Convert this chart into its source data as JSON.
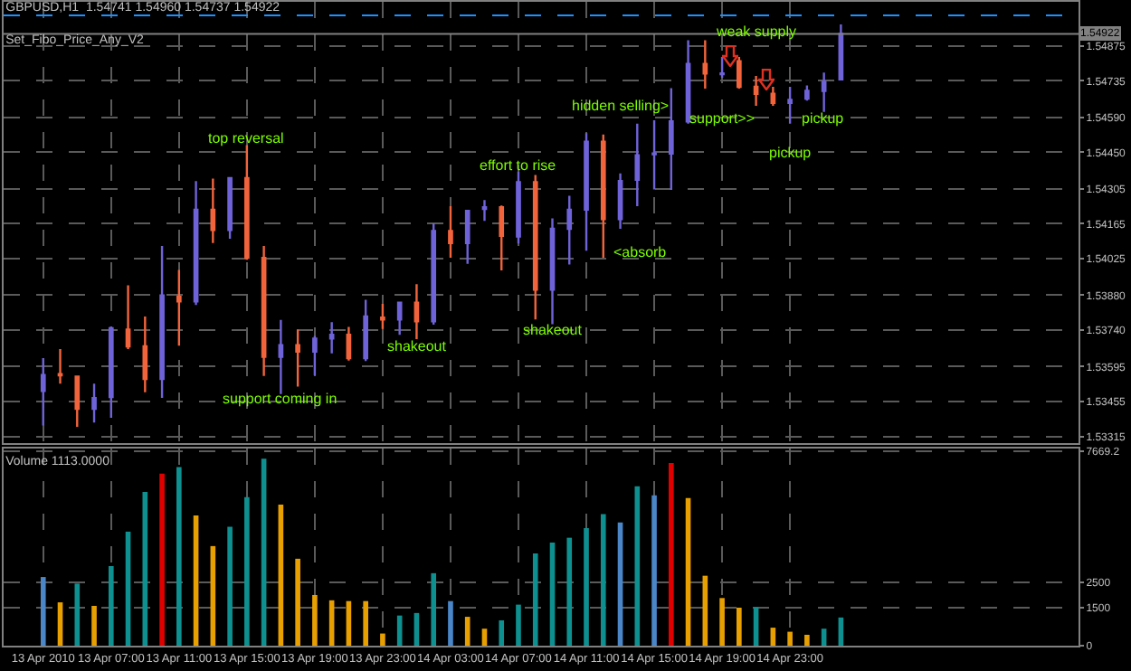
{
  "chart_data": [
    {
      "type": "candlestick",
      "title": "GBPUSD,H1  1.54741 1.54960 1.54737 1.54922",
      "subtitle": "Set_Fibo_Price_Any_V2",
      "x": [
        "2010-04-13T03:00",
        "2010-04-13T04:00",
        "2010-04-13T05:00",
        "2010-04-13T06:00",
        "2010-04-13T07:00",
        "2010-04-13T08:00",
        "2010-04-13T09:00",
        "2010-04-13T10:00",
        "2010-04-13T11:00",
        "2010-04-13T12:00",
        "2010-04-13T13:00",
        "2010-04-13T14:00",
        "2010-04-13T15:00",
        "2010-04-13T16:00",
        "2010-04-13T17:00",
        "2010-04-13T18:00",
        "2010-04-13T19:00",
        "2010-04-13T20:00",
        "2010-04-13T21:00",
        "2010-04-13T22:00",
        "2010-04-13T23:00",
        "2010-04-14T00:00",
        "2010-04-14T01:00",
        "2010-04-14T02:00",
        "2010-04-14T03:00",
        "2010-04-14T04:00",
        "2010-04-14T05:00",
        "2010-04-14T06:00",
        "2010-04-14T07:00",
        "2010-04-14T08:00",
        "2010-04-14T09:00",
        "2010-04-14T10:00",
        "2010-04-14T11:00",
        "2010-04-14T12:00",
        "2010-04-14T13:00",
        "2010-04-14T14:00",
        "2010-04-14T15:00",
        "2010-04-14T16:00",
        "2010-04-14T17:00",
        "2010-04-14T18:00",
        "2010-04-14T19:00",
        "2010-04-14T20:00",
        "2010-04-14T21:00",
        "2010-04-14T22:00",
        "2010-04-14T23:00",
        "2010-04-15T00:00",
        "2010-04-15T01:00",
        "2010-04-15T02:00"
      ],
      "ohlc": [
        [
          1.53498,
          1.53629,
          1.5336,
          1.53562
        ],
        [
          1.53565,
          1.53665,
          1.53527,
          1.5356
        ],
        [
          1.53555,
          1.53558,
          1.53355,
          1.53427
        ],
        [
          1.53427,
          1.53527,
          1.53372,
          1.5347
        ],
        [
          1.53474,
          1.53755,
          1.53391,
          1.53748
        ],
        [
          1.53743,
          1.53919,
          1.53665,
          1.53676
        ],
        [
          1.53676,
          1.53795,
          1.53493,
          1.53546
        ],
        [
          1.53546,
          1.54076,
          1.5347,
          1.53879
        ],
        [
          1.53874,
          1.53981,
          1.53679,
          1.53855
        ],
        [
          1.53855,
          1.54335,
          1.53841,
          1.54221
        ],
        [
          1.54221,
          1.54345,
          1.54088,
          1.5414
        ],
        [
          1.5414,
          1.54347,
          1.54105,
          1.54347
        ],
        [
          1.54347,
          1.54478,
          1.54021,
          1.54029
        ],
        [
          1.54029,
          1.54076,
          1.53558,
          1.53634
        ],
        [
          1.53634,
          1.53781,
          1.53486,
          1.53681
        ],
        [
          1.53681,
          1.53743,
          1.53515,
          1.53655
        ],
        [
          1.53655,
          1.53717,
          1.5356,
          1.53707
        ],
        [
          1.53707,
          1.53772,
          1.53648,
          1.53722
        ],
        [
          1.53722,
          1.53753,
          1.53619,
          1.53629
        ],
        [
          1.53629,
          1.53862,
          1.53617,
          1.53795
        ],
        [
          1.53791,
          1.53845,
          1.53745,
          1.53783
        ],
        [
          1.53783,
          1.53852,
          1.53722,
          1.5385
        ],
        [
          1.5385,
          1.53924,
          1.53705,
          1.53776
        ],
        [
          1.53776,
          1.54166,
          1.53762,
          1.54136
        ],
        [
          1.54136,
          1.54235,
          1.54029,
          1.54088
        ],
        [
          1.54088,
          1.54219,
          1.54005,
          1.54216
        ],
        [
          1.54224,
          1.54259,
          1.54176,
          1.54231
        ],
        [
          1.54231,
          1.54238,
          1.53979,
          1.54117
        ],
        [
          1.54114,
          1.54373,
          1.54086,
          1.54331
        ],
        [
          1.54331,
          1.54359,
          1.53783,
          1.53902
        ],
        [
          1.53902,
          1.54186,
          1.53764,
          1.54145
        ],
        [
          1.54145,
          1.54276,
          1.54002,
          1.54221
        ],
        [
          1.54221,
          1.54526,
          1.54057,
          1.54492
        ],
        [
          1.54492,
          1.54521,
          1.54029,
          1.54183
        ],
        [
          1.54183,
          1.54366,
          1.54145,
          1.54335
        ],
        [
          1.5434,
          1.54564,
          1.54235,
          1.54438
        ],
        [
          1.54442,
          1.54578,
          1.54302,
          1.54445
        ],
        [
          1.54445,
          1.54706,
          1.543,
          1.54573
        ],
        [
          1.54573,
          1.54897,
          1.54564,
          1.54802
        ],
        [
          1.54802,
          1.54897,
          1.54704,
          1.54764
        ],
        [
          1.54761,
          1.5483,
          1.54747,
          1.54764
        ],
        [
          1.54813,
          1.5483,
          1.54704,
          1.54711
        ],
        [
          1.54711,
          1.54754,
          1.54635,
          1.54683
        ],
        [
          1.54683,
          1.54711,
          1.54635,
          1.54647
        ],
        [
          1.54647,
          1.54711,
          1.54564,
          1.54659
        ],
        [
          1.54664,
          1.54716,
          1.54656,
          1.54695
        ],
        [
          1.54695,
          1.54768,
          1.54611,
          1.5473
        ],
        [
          1.54741,
          1.5496,
          1.54737,
          1.54922
        ]
      ],
      "colors": [
        "#6f63d9",
        "#f2643c",
        "#f2643c",
        "#6f63d9",
        "#6f63d9",
        "#f2643c",
        "#f2643c",
        "#6f63d9",
        "#f2643c",
        "#6f63d9",
        "#f2643c",
        "#6f63d9",
        "#f2643c",
        "#f2643c",
        "#6f63d9",
        "#f2643c",
        "#6f63d9",
        "#6f63d9",
        "#f2643c",
        "#6f63d9",
        "#f2643c",
        "#6f63d9",
        "#f2643c",
        "#6f63d9",
        "#f2643c",
        "#6f63d9",
        "#6f63d9",
        "#f2643c",
        "#6f63d9",
        "#f2643c",
        "#6f63d9",
        "#6f63d9",
        "#6f63d9",
        "#f2643c",
        "#6f63d9",
        "#6f63d9",
        "#6f63d9",
        "#6f63d9",
        "#6f63d9",
        "#f2643c",
        "#6f63d9",
        "#f2643c",
        "#f2643c",
        "#f2643c",
        "#6f63d9",
        "#6f63d9",
        "#6f63d9",
        "#6f63d9"
      ],
      "xlim": [
        "2010-04-13T00:40",
        "2010-04-15T16:00"
      ],
      "xticks": [
        {
          "value": "2010-04-13T03:00",
          "label": null
        },
        {
          "value": "2010-04-13T07:00",
          "label": null
        },
        {
          "value": "2010-04-13T11:00",
          "label": null
        },
        {
          "value": "2010-04-13T15:00",
          "label": null
        },
        {
          "value": "2010-04-13T19:00",
          "label": null
        },
        {
          "value": "2010-04-13T23:00",
          "label": null
        },
        {
          "value": "2010-04-14T03:00",
          "label": null
        },
        {
          "value": "2010-04-14T07:00",
          "label": null
        },
        {
          "value": "2010-04-14T11:00",
          "label": null
        },
        {
          "value": "2010-04-14T15:00",
          "label": null
        },
        {
          "value": "2010-04-14T19:00",
          "label": null
        },
        {
          "value": "2010-04-14T23:00",
          "label": null
        }
      ],
      "ylim": [
        1.5329,
        1.5505
      ],
      "yticks": [
        1.54875,
        1.54735,
        {
          "value": 1.5459,
          "label": "1.54590"
        },
        {
          "value": 1.5445,
          "label": "1.54450"
        },
        1.54305,
        1.54165,
        1.54025,
        {
          "value": 1.5388,
          "label": "1.53880"
        },
        {
          "value": 1.5374,
          "label": "1.53740"
        },
        1.53595,
        1.53455,
        1.53315
      ],
      "grid": true,
      "tick_labels": "y",
      "ref_lines": [
        {
          "axis": "y",
          "value": 1.54922,
          "label": "1.54922",
          "color": "#808080",
          "line_style": "solid"
        },
        {
          "axis": "y",
          "value": 1.54996,
          "color": "#1e90ff",
          "line_style": "dashed"
        }
      ],
      "annotations": [
        {
          "text": "top reversal",
          "x": "2010-04-13T15:00",
          "y": 1.54509
        },
        "support coming in",
        {
          "text": "shakeout",
          "x": "2010-04-14T01:00",
          "y": 1.53676
        },
        "effort to rise",
        "shakeout",
        "hidden selling>",
        "<absorb",
        {
          "text": "weak supply",
          "x": "2010-04-14T21:00",
          "y": 1.5493
        },
        "support>>",
        "pickup",
        {
          "text": "pickup",
          "x": "2010-04-15T01:00",
          "y": 1.54585
        }
      ]
    },
    {
      "type": "bar",
      "title": "Volume 1113.0000",
      "x": [
        "2010-04-13T03:00",
        "2010-04-13T04:00",
        "2010-04-13T05:00",
        "2010-04-13T06:00",
        "2010-04-13T07:00",
        "2010-04-13T08:00",
        "2010-04-13T09:00",
        "2010-04-13T10:00",
        "2010-04-13T11:00",
        "2010-04-13T12:00",
        "2010-04-13T13:00",
        "2010-04-13T14:00",
        "2010-04-13T15:00",
        "2010-04-13T16:00",
        "2010-04-13T17:00",
        "2010-04-13T18:00",
        "2010-04-13T19:00",
        "2010-04-13T20:00",
        "2010-04-13T21:00",
        "2010-04-13T22:00",
        "2010-04-13T23:00",
        "2010-04-14T00:00",
        "2010-04-14T01:00",
        "2010-04-14T02:00",
        "2010-04-14T03:00",
        "2010-04-14T04:00",
        "2010-04-14T05:00",
        "2010-04-14T06:00",
        "2010-04-14T07:00",
        "2010-04-14T08:00",
        "2010-04-14T09:00",
        "2010-04-14T10:00",
        "2010-04-14T11:00",
        "2010-04-14T12:00",
        "2010-04-14T13:00",
        "2010-04-14T14:00",
        "2010-04-14T15:00",
        "2010-04-14T16:00",
        "2010-04-14T17:00",
        "2010-04-14T18:00",
        "2010-04-14T19:00",
        "2010-04-14T20:00",
        "2010-04-14T21:00",
        "2010-04-14T22:00",
        "2010-04-14T23:00",
        "2010-04-15T00:00",
        "2010-04-15T01:00",
        "2010-04-15T02:00"
      ],
      "values": [
        2710,
        1710,
        2450,
        1570,
        3140,
        4500,
        6070,
        6790,
        7050,
        5140,
        3930,
        4690,
        5860,
        7380,
        5570,
        3430,
        2000,
        1790,
        1760,
        1760,
        480,
        1190,
        1290,
        2860,
        1760,
        1140,
        670,
        1000,
        1620,
        3640,
        4070,
        4260,
        4640,
        5190,
        4860,
        6290,
        5930,
        7210,
        5830,
        2760,
        1880,
        1500,
        1520,
        710,
        550,
        430,
        670,
        1113
      ],
      "colors": [
        "#4a86c8",
        "#e8a000",
        "#0f9090",
        "#e8a000",
        "#0f9090",
        "#0f9090",
        "#0f9090",
        "#e00000",
        "#0f9090",
        "#e8a000",
        "#e8a000",
        "#0f9090",
        "#0f9090",
        "#0f9090",
        "#e8a000",
        "#e8a000",
        "#e8a000",
        "#e8a000",
        "#e8a000",
        "#e8a000",
        "#e8a000",
        "#0f9090",
        "#0f9090",
        "#0f9090",
        "#4a86c8",
        "#e8a000",
        "#e8a000",
        "#0f9090",
        "#0f9090",
        "#0f9090",
        "#0f9090",
        "#0f9090",
        "#0f9090",
        "#0f9090",
        "#4a86c8",
        "#0f9090",
        "#4a86c8",
        "#e00000",
        "#e8a000",
        "#e8a000",
        "#e8a000",
        "#e8a000",
        "#0f9090",
        "#e8a000",
        "#e8a000",
        "#e8a000",
        "#0f9090",
        "#0f9090"
      ],
      "xlim": [
        "2010-04-13T00:40",
        "2010-04-15T16:00"
      ],
      "xticks": [
        {
          "value": "2010-04-13T03:00",
          "label": "13 Apr 2010"
        },
        {
          "value": "2010-04-13T07:00",
          "label": "13 Apr 07:00"
        },
        {
          "value": "2010-04-13T11:00",
          "label": "13 Apr 11:00"
        },
        {
          "value": "2010-04-13T15:00",
          "label": "13 Apr 15:00"
        },
        {
          "value": "2010-04-13T19:00",
          "label": "13 Apr 19:00"
        },
        {
          "value": "2010-04-13T23:00",
          "label": "13 Apr 23:00"
        },
        {
          "value": "2010-04-14T03:00",
          "label": "14 Apr 03:00"
        },
        {
          "value": "2010-04-14T07:00",
          "label": "14 Apr 07:00"
        },
        {
          "value": "2010-04-14T11:00",
          "label": "14 Apr 11:00"
        },
        {
          "value": "2010-04-14T15:00",
          "label": "14 Apr 15:00"
        },
        {
          "value": "2010-04-14T19:00",
          "label": "14 Apr 19:00"
        },
        {
          "value": "2010-04-14T23:00",
          "label": "14 Apr 23:00"
        }
      ],
      "ylim": [
        0,
        7780
      ],
      "yticks": [
        0,
        1500,
        2500,
        7669.2
      ],
      "grid": true
    }
  ]
}
